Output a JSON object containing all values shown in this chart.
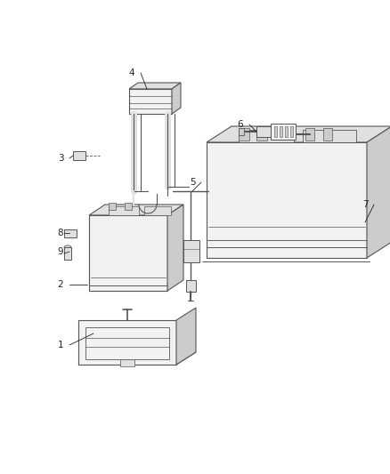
{
  "bg_color": "#ffffff",
  "fig_width": 4.38,
  "fig_height": 5.33,
  "dpi": 100,
  "outline_color": "#555555",
  "text_color": "#222222",
  "fill_light": "#f2f2f2",
  "fill_mid": "#e0e0e0",
  "fill_dark": "#cccccc"
}
